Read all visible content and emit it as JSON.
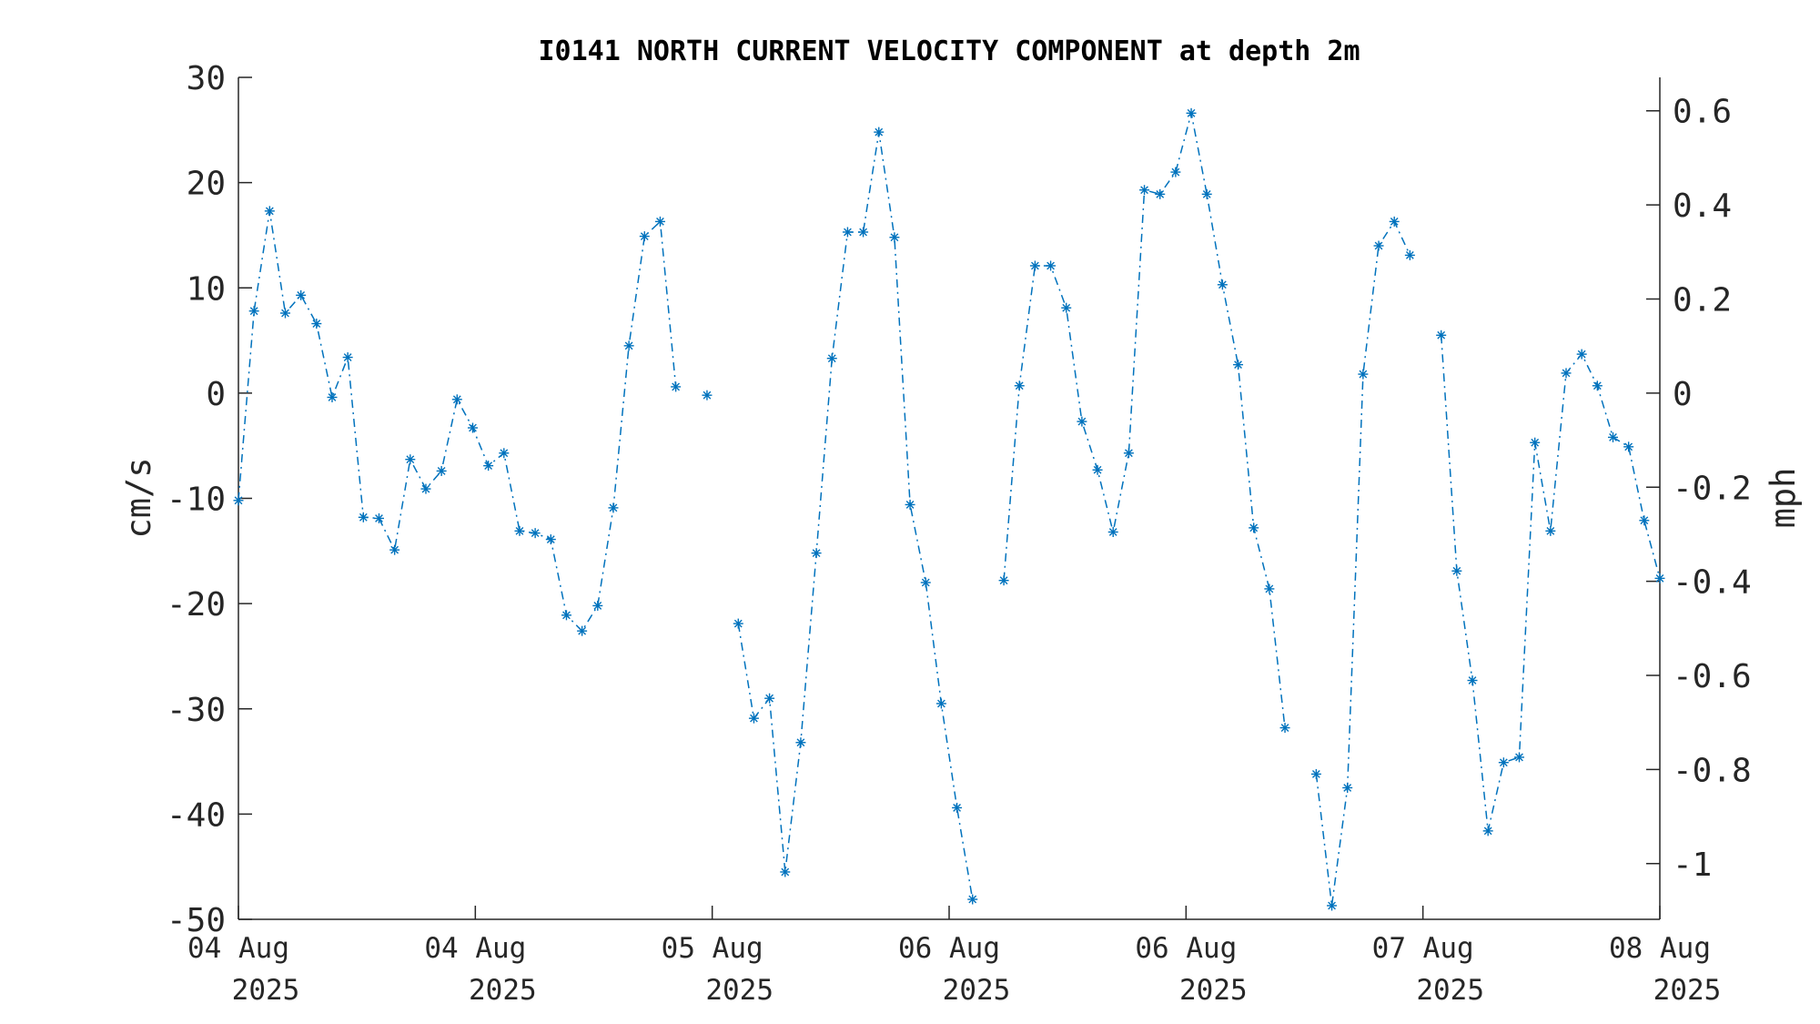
{
  "chart_data": {
    "type": "line",
    "title": "I0141 NORTH CURRENT VELOCITY COMPONENT at depth 2m",
    "ylabel": "cm/s",
    "y2label": "mph",
    "ylim": [
      -50,
      30
    ],
    "yticks": [
      30,
      20,
      10,
      0,
      -10,
      -20,
      -30,
      -40,
      -50
    ],
    "y2ticks": [
      0.6,
      0.4,
      0.2,
      0,
      -0.2,
      -0.4,
      -0.6,
      -0.8,
      -1
    ],
    "y2_conversion": "mph = cm/s × 0.0223694",
    "xlim": [
      "2025-08-04 00:00",
      "2025-08-08 00:00"
    ],
    "xticks": [
      {
        "line1": "04 Aug",
        "line2": "2025"
      },
      {
        "line1": "04 Aug",
        "line2": "2025"
      },
      {
        "line1": "05 Aug",
        "line2": "2025"
      },
      {
        "line1": "06 Aug",
        "line2": "2025"
      },
      {
        "line1": "06 Aug",
        "line2": "2025"
      },
      {
        "line1": "07 Aug",
        "line2": "2025"
      },
      {
        "line1": "08 Aug",
        "line2": "2025"
      }
    ],
    "grid": false,
    "legend": "none",
    "marker": "asterisk",
    "line_style": "dash-dot",
    "color": "#0072bd",
    "sample_interval": "~1 hour",
    "series": [
      {
        "values": [
          -10.2,
          7.8,
          17.3,
          7.6,
          9.3,
          6.6,
          -0.4,
          3.4,
          -11.8,
          -11.9,
          -14.9,
          -6.3,
          -9.1,
          -7.4,
          -0.6,
          -3.3,
          -6.9,
          -5.7,
          -13.1,
          -13.3,
          -13.9,
          -21.1,
          -22.6,
          -20.2,
          -10.9,
          4.5,
          14.9,
          16.3,
          0.6,
          null,
          -0.2,
          null,
          -21.9,
          -30.9,
          -29.0,
          -45.5,
          -33.2,
          -15.2,
          3.3,
          15.3,
          15.3,
          24.8,
          14.8,
          -10.6,
          -18.0,
          -29.5,
          -39.4,
          -48.1,
          null,
          -17.8,
          0.7,
          12.1,
          12.1,
          8.1,
          -2.7,
          -7.3,
          -13.2,
          -5.7,
          19.3,
          18.9,
          21.0,
          26.6,
          18.9,
          10.3,
          2.7,
          -12.8,
          -18.6,
          -31.8,
          null,
          -36.2,
          -48.7,
          -37.5,
          1.8,
          14.0,
          16.3,
          13.1,
          null,
          5.5,
          -16.9,
          -27.3,
          -41.6,
          -35.1,
          -34.6,
          -4.7,
          -13.1,
          1.9,
          3.7,
          0.7,
          -4.2,
          -5.1,
          -12.1,
          -17.6
        ]
      }
    ]
  }
}
